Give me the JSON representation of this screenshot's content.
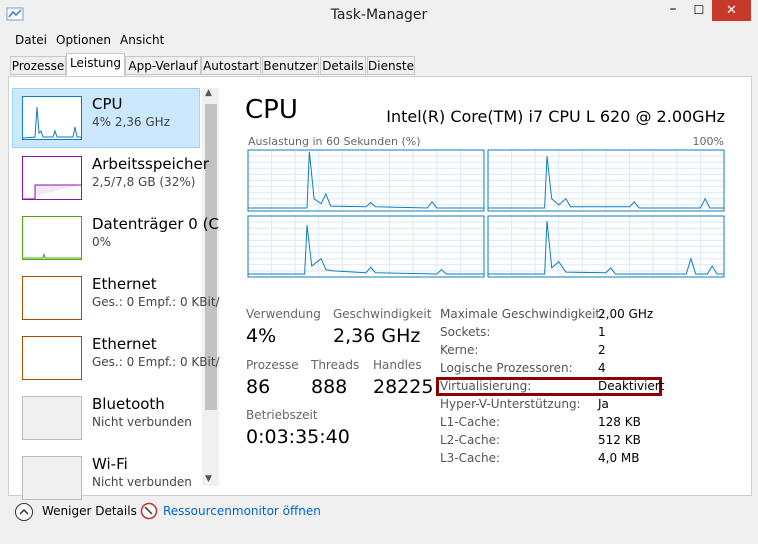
{
  "window": {
    "title": "Task-Manager"
  },
  "menu": [
    "Datei",
    "Optionen",
    "Ansicht"
  ],
  "tabs": [
    "Prozesse",
    "Leistung",
    "App-Verlauf",
    "Autostart",
    "Benutzer",
    "Details",
    "Dienste"
  ],
  "sidebar": [
    {
      "name": "CPU",
      "detail": "4% 2,36 GHz"
    },
    {
      "name": "Arbeitsspeicher",
      "detail": "2,5/7,8 GB (32%)"
    },
    {
      "name": "Datenträger 0 (C",
      "detail": "0%"
    },
    {
      "name": "Ethernet",
      "detail": "Ges.: 0 Empf.: 0 KBit/"
    },
    {
      "name": "Ethernet",
      "detail": "Ges.: 0 Empf.: 0 KBit/"
    },
    {
      "name": "Bluetooth",
      "detail": "Nicht verbunden"
    },
    {
      "name": "Wi-Fi",
      "detail": "Nicht verbunden"
    }
  ],
  "main": {
    "title": "CPU",
    "processor": "Intel(R) Core(TM) i7 CPU L 620 @ 2.00GHz",
    "graph_label": "Auslastung in 60 Sekunden (%)",
    "graph_max": "100%"
  },
  "stats": [
    {
      "label": "Verwendung",
      "value": "4%"
    },
    {
      "label": "Geschwindigkeit",
      "value": "2,36 GHz"
    },
    {
      "label": "Prozesse",
      "value": "86"
    },
    {
      "label": "Threads",
      "value": "888"
    },
    {
      "label": "Handles",
      "value": "28225"
    },
    {
      "label": "Betriebszeit",
      "value": "0:03:35:40"
    }
  ],
  "details": [
    {
      "label": "Maximale Geschwindigkeit:",
      "value": "2,00 GHz"
    },
    {
      "label": "Sockets:",
      "value": "1"
    },
    {
      "label": "Kerne:",
      "value": "2"
    },
    {
      "label": "Logische Prozessoren:",
      "value": "4"
    },
    {
      "label": "Virtualisierung:",
      "value": "Deaktiviert"
    },
    {
      "label": "Hyper-V-Unterstützung:",
      "value": "Ja"
    },
    {
      "label": "L1-Cache:",
      "value": "128 KB"
    },
    {
      "label": "L2-Cache:",
      "value": "512 KB"
    },
    {
      "label": "L3-Cache:",
      "value": "4,0 MB"
    }
  ],
  "footer": {
    "fewer_details": "Weniger Details",
    "resource_monitor": "Ressourcenmonitor öffnen"
  }
}
